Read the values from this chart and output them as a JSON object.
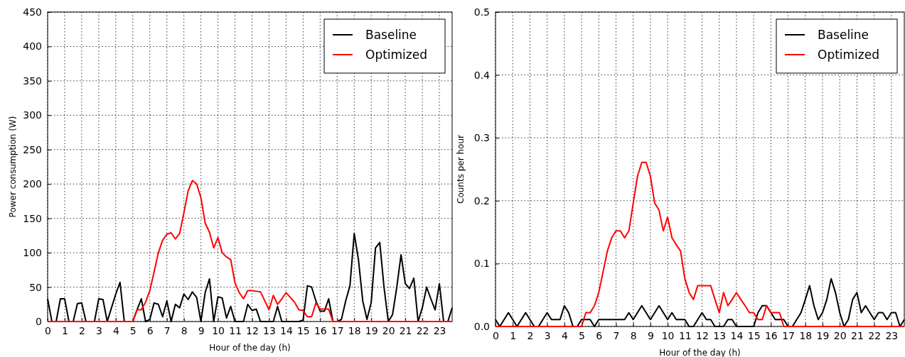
{
  "chart_data": [
    {
      "type": "line",
      "xlabel": "Hour of the day (h)",
      "ylabel": "Power consumption (W)",
      "xlim": [
        0,
        23.75
      ],
      "xticks": [
        0,
        1,
        2,
        3,
        4,
        5,
        6,
        7,
        8,
        9,
        10,
        11,
        12,
        13,
        14,
        15,
        16,
        17,
        18,
        19,
        20,
        21,
        22,
        23
      ],
      "ylim": [
        0,
        450
      ],
      "yticks": [
        0,
        50,
        100,
        150,
        200,
        250,
        300,
        350,
        400,
        450
      ],
      "grid": true,
      "legend": "top right",
      "line_style": "solid",
      "x": [
        0,
        0.25,
        0.5,
        0.75,
        1,
        1.25,
        1.5,
        1.75,
        2,
        2.25,
        2.5,
        2.75,
        3,
        3.25,
        3.5,
        3.75,
        4,
        4.25,
        4.5,
        4.75,
        5,
        5.25,
        5.5,
        5.75,
        6,
        6.25,
        6.5,
        6.75,
        7,
        7.25,
        7.5,
        7.75,
        8,
        8.25,
        8.5,
        8.75,
        9,
        9.25,
        9.5,
        9.75,
        10,
        10.25,
        10.5,
        10.75,
        11,
        11.25,
        11.5,
        11.75,
        12,
        12.25,
        12.5,
        12.75,
        13,
        13.25,
        13.5,
        13.75,
        14,
        14.25,
        14.5,
        14.75,
        15,
        15.25,
        15.5,
        15.75,
        16,
        16.25,
        16.5,
        16.75,
        17,
        17.25,
        17.5,
        17.75,
        18,
        18.25,
        18.5,
        18.75,
        19,
        19.25,
        19.5,
        19.75,
        20,
        20.25,
        20.5,
        20.75,
        21,
        21.25,
        21.5,
        21.75,
        22,
        22.25,
        22.5,
        22.75,
        23,
        23.25,
        23.5,
        23.75
      ],
      "series": [
        {
          "name": "Baseline",
          "color": "#000000",
          "values": [
            33,
            0,
            0,
            33,
            33,
            0,
            0,
            26,
            27,
            0,
            0,
            0,
            33,
            32,
            0,
            20,
            40,
            57,
            0,
            0,
            0,
            17,
            33,
            0,
            3,
            27,
            25,
            7,
            30,
            0,
            25,
            20,
            40,
            32,
            43,
            35,
            0,
            42,
            62,
            0,
            36,
            34,
            5,
            22,
            0,
            0,
            0,
            25,
            16,
            18,
            0,
            0,
            0,
            0,
            22,
            0,
            0,
            0,
            0,
            0,
            2,
            52,
            50,
            30,
            15,
            15,
            33,
            0,
            0,
            3,
            30,
            52,
            128,
            90,
            30,
            3,
            28,
            107,
            115,
            50,
            0,
            10,
            50,
            97,
            55,
            48,
            63,
            0,
            20,
            50,
            33,
            17,
            55,
            0,
            0,
            20
          ]
        },
        {
          "name": "Optimized",
          "color": "#ff0000",
          "values": [
            0,
            0,
            0,
            0,
            0,
            0,
            0,
            0,
            0,
            0,
            0,
            0,
            0,
            0,
            0,
            0,
            0,
            0,
            0,
            0,
            0,
            17,
            17,
            28,
            45,
            72,
            100,
            118,
            127,
            129,
            120,
            128,
            158,
            190,
            205,
            200,
            180,
            143,
            130,
            107,
            122,
            100,
            94,
            90,
            56,
            42,
            33,
            45,
            45,
            44,
            43,
            30,
            17,
            38,
            25,
            33,
            42,
            35,
            28,
            17,
            16,
            7,
            7,
            27,
            18,
            18,
            18,
            0,
            0,
            0,
            0,
            0,
            0,
            0,
            0,
            0,
            0,
            0,
            0,
            0,
            0,
            0,
            0,
            0,
            0,
            0,
            0,
            0,
            0,
            0,
            0,
            0,
            0,
            0,
            0,
            0
          ]
        }
      ]
    },
    {
      "type": "line",
      "xlabel": "Hour of the day (h)",
      "ylabel": "Counts per hour",
      "xlim": [
        0,
        23.75
      ],
      "xticks": [
        0,
        1,
        2,
        3,
        4,
        5,
        6,
        7,
        8,
        9,
        10,
        11,
        12,
        13,
        14,
        15,
        16,
        17,
        18,
        19,
        20,
        21,
        22,
        23
      ],
      "ylim": [
        0,
        0.5
      ],
      "yticks": [
        {
          "value": 0,
          "label": "0.0"
        },
        0.1,
        0.2,
        0.3,
        0.4,
        0.5
      ],
      "grid": true,
      "legend": "top right",
      "line_style": "solid",
      "x": [
        0,
        0.25,
        0.5,
        0.75,
        1,
        1.25,
        1.5,
        1.75,
        2,
        2.25,
        2.5,
        2.75,
        3,
        3.25,
        3.5,
        3.75,
        4,
        4.25,
        4.5,
        4.75,
        5,
        5.25,
        5.5,
        5.75,
        6,
        6.25,
        6.5,
        6.75,
        7,
        7.25,
        7.5,
        7.75,
        8,
        8.25,
        8.5,
        8.75,
        9,
        9.25,
        9.5,
        9.75,
        10,
        10.25,
        10.5,
        10.75,
        11,
        11.25,
        11.5,
        11.75,
        12,
        12.25,
        12.5,
        12.75,
        13,
        13.25,
        13.5,
        13.75,
        14,
        14.25,
        14.5,
        14.75,
        15,
        15.25,
        15.5,
        15.75,
        16,
        16.25,
        16.5,
        16.75,
        17,
        17.25,
        17.5,
        17.75,
        18,
        18.25,
        18.5,
        18.75,
        19,
        19.25,
        19.5,
        19.75,
        20,
        20.25,
        20.5,
        20.75,
        21,
        21.25,
        21.5,
        21.75,
        22,
        22.25,
        22.5,
        22.75,
        23,
        23.25,
        23.5,
        23.75
      ],
      "series": [
        {
          "name": "Baseline",
          "color": "#000000",
          "values": [
            0.011,
            0,
            0.011,
            0.022,
            0.011,
            0,
            0.011,
            0.022,
            0.011,
            0,
            0,
            0.011,
            0.022,
            0.011,
            0.011,
            0.011,
            0.033,
            0.022,
            0,
            0,
            0.011,
            0.011,
            0.011,
            0,
            0.011,
            0.011,
            0.011,
            0.011,
            0.011,
            0.011,
            0.011,
            0.022,
            0.011,
            0.022,
            0.033,
            0.022,
            0.011,
            0.022,
            0.033,
            0.022,
            0.011,
            0.022,
            0.011,
            0.011,
            0.011,
            0,
            0,
            0.011,
            0.022,
            0.011,
            0.011,
            0,
            0,
            0,
            0.011,
            0.011,
            0,
            0,
            0,
            0,
            0,
            0.022,
            0.033,
            0.033,
            0.022,
            0.011,
            0.011,
            0.011,
            0,
            0,
            0.011,
            0.022,
            0.043,
            0.065,
            0.033,
            0.011,
            0.022,
            0.043,
            0.076,
            0.054,
            0.022,
            0,
            0.011,
            0.043,
            0.054,
            0.022,
            0.033,
            0.022,
            0.011,
            0.022,
            0.022,
            0.011,
            0.022,
            0.022,
            0,
            0.011
          ]
        },
        {
          "name": "Optimized",
          "color": "#ff0000",
          "values": [
            0,
            0,
            0,
            0,
            0,
            0,
            0,
            0,
            0,
            0,
            0,
            0,
            0,
            0,
            0,
            0,
            0,
            0,
            0,
            0,
            0,
            0.022,
            0.022,
            0.033,
            0.054,
            0.087,
            0.12,
            0.141,
            0.152,
            0.152,
            0.141,
            0.152,
            0.196,
            0.239,
            0.261,
            0.261,
            0.239,
            0.196,
            0.185,
            0.152,
            0.174,
            0.141,
            0.13,
            0.12,
            0.076,
            0.054,
            0.043,
            0.065,
            0.065,
            0.065,
            0.065,
            0.043,
            0.022,
            0.054,
            0.033,
            0.043,
            0.054,
            0.043,
            0.033,
            0.022,
            0.022,
            0.011,
            0.011,
            0.033,
            0.022,
            0.022,
            0.022,
            0,
            0,
            0,
            0,
            0,
            0,
            0,
            0,
            0,
            0,
            0,
            0,
            0,
            0,
            0,
            0,
            0,
            0,
            0,
            0,
            0,
            0,
            0,
            0,
            0,
            0,
            0,
            0,
            0
          ]
        }
      ]
    }
  ]
}
